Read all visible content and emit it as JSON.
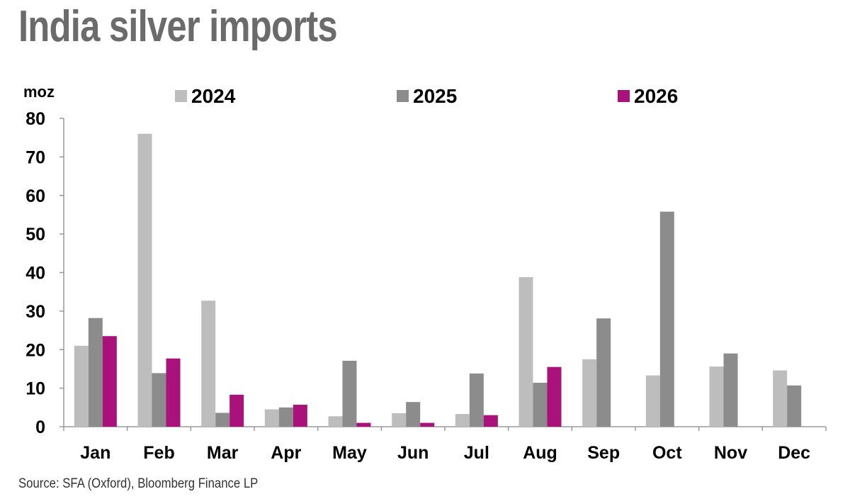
{
  "title": "India silver imports",
  "source": "Source: SFA (Oxford), Bloomberg Finance LP",
  "chart_data": {
    "type": "bar",
    "ylabel": "moz",
    "ylim": [
      0,
      80
    ],
    "yticks": [
      0,
      10,
      20,
      30,
      40,
      50,
      60,
      70,
      80
    ],
    "grid": false,
    "legend_position": "top",
    "categories": [
      "Jan",
      "Feb",
      "Mar",
      "Apr",
      "May",
      "Jun",
      "Jul",
      "Aug",
      "Sep",
      "Oct",
      "Nov",
      "Dec"
    ],
    "series": [
      {
        "name": "2024",
        "color": "#bdbdbd",
        "values": [
          21.0,
          76.0,
          32.7,
          4.5,
          2.7,
          3.5,
          3.3,
          38.8,
          17.5,
          13.3,
          15.6,
          14.6
        ]
      },
      {
        "name": "2025",
        "color": "#8c8c8c",
        "values": [
          28.2,
          13.9,
          3.6,
          5.0,
          17.1,
          6.4,
          13.8,
          11.4,
          28.1,
          55.8,
          19.0,
          10.7
        ]
      },
      {
        "name": "2026",
        "color": "#a8127a",
        "values": [
          23.5,
          17.7,
          8.3,
          5.7,
          1.0,
          1.0,
          3.0,
          15.5,
          null,
          null,
          null,
          null
        ]
      }
    ]
  }
}
